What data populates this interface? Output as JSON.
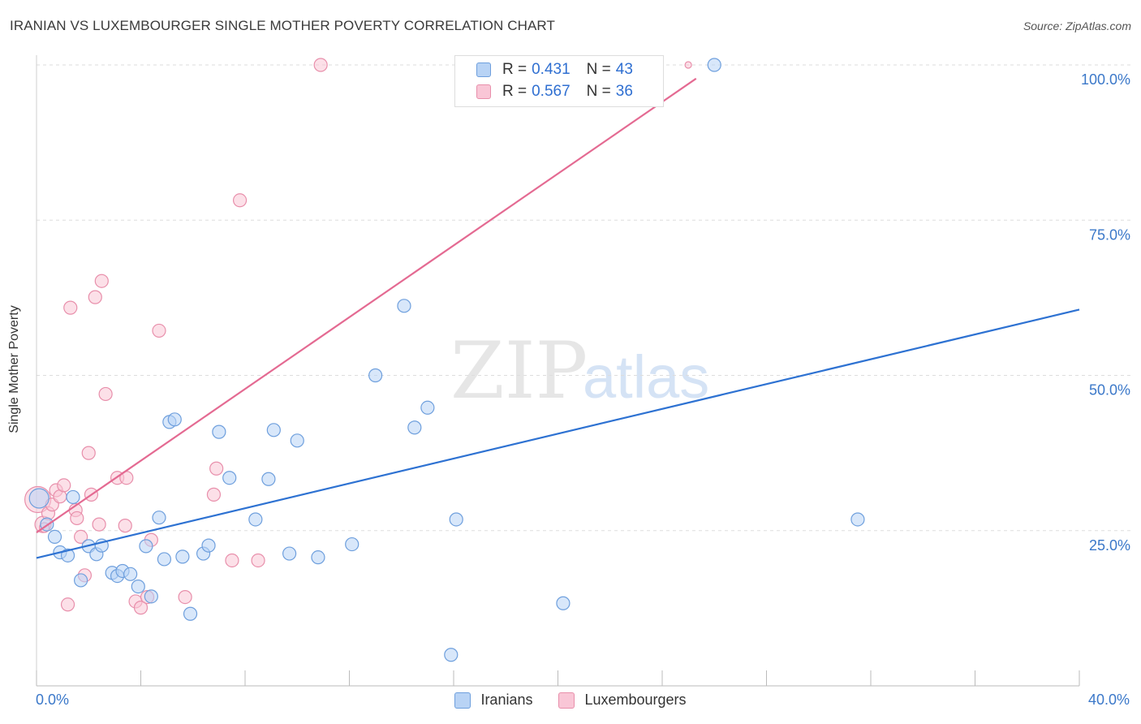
{
  "header": {
    "title": "IRANIAN VS LUXEMBOURGER SINGLE MOTHER POVERTY CORRELATION CHART",
    "source": "Source: ZipAtlas.com"
  },
  "watermark": {
    "zip": "ZIP",
    "atlas": "atlas"
  },
  "legend_top": {
    "rows": [
      {
        "r_label": "R =",
        "r_value": "0.431",
        "n_label": "N =",
        "n_value": "43"
      },
      {
        "r_label": "R =",
        "r_value": "0.567",
        "n_label": "N =",
        "n_value": "36"
      }
    ]
  },
  "colors": {
    "iranians_fill": "#b8d3f5",
    "iranians_stroke": "#6e9fdd",
    "iranians_line": "#2e72d2",
    "lux_fill": "#f9c6d6",
    "lux_stroke": "#e88fab",
    "lux_line": "#e46a92",
    "axis_label": "#3b78c9",
    "grid": "#dddddd"
  },
  "chart_data": {
    "type": "scatter",
    "title": "IRANIAN VS LUXEMBOURGER SINGLE MOTHER POVERTY CORRELATION CHART",
    "xlabel": "",
    "ylabel": "Single Mother Poverty",
    "xlim": [
      0,
      40
    ],
    "ylim": [
      0,
      100
    ],
    "x_tick_labels": [
      "0.0%",
      "40.0%"
    ],
    "y_tick_labels": [
      "25.0%",
      "50.0%",
      "75.0%",
      "100.0%"
    ],
    "y_ticks": [
      25,
      50,
      75,
      100
    ],
    "grid": true,
    "legend_position": "bottom",
    "series": [
      {
        "name": "Iranians",
        "r": 0.431,
        "n": 43,
        "trend": {
          "x": [
            0,
            40
          ],
          "y": [
            20.6,
            60.6
          ]
        },
        "points": [
          [
            0.1,
            30.2,
            12
          ],
          [
            0.4,
            26.0,
            8
          ],
          [
            0.7,
            24.0,
            8
          ],
          [
            0.9,
            21.5,
            8
          ],
          [
            1.2,
            21.0,
            8
          ],
          [
            1.4,
            30.4,
            8
          ],
          [
            1.7,
            17.0,
            8
          ],
          [
            2.0,
            22.5,
            8
          ],
          [
            2.3,
            21.2,
            8
          ],
          [
            2.5,
            22.6,
            8
          ],
          [
            2.9,
            18.2,
            8
          ],
          [
            3.1,
            17.7,
            8
          ],
          [
            3.3,
            18.5,
            8
          ],
          [
            3.6,
            18.0,
            8
          ],
          [
            3.9,
            16.0,
            8
          ],
          [
            4.2,
            22.5,
            8
          ],
          [
            4.4,
            14.4,
            8
          ],
          [
            4.7,
            27.1,
            8
          ],
          [
            4.9,
            20.4,
            8
          ],
          [
            5.1,
            42.5,
            8
          ],
          [
            5.3,
            42.9,
            8
          ],
          [
            5.6,
            20.8,
            8
          ],
          [
            5.9,
            11.6,
            8
          ],
          [
            6.4,
            21.3,
            8
          ],
          [
            6.6,
            22.6,
            8
          ],
          [
            7.0,
            40.9,
            8
          ],
          [
            7.4,
            33.5,
            8
          ],
          [
            8.4,
            26.8,
            8
          ],
          [
            8.9,
            33.3,
            8
          ],
          [
            9.1,
            41.2,
            8
          ],
          [
            9.7,
            21.3,
            8
          ],
          [
            10.0,
            39.5,
            8
          ],
          [
            10.8,
            20.7,
            8
          ],
          [
            12.1,
            22.8,
            8
          ],
          [
            13.0,
            50.0,
            8
          ],
          [
            14.1,
            61.2,
            8
          ],
          [
            14.5,
            41.6,
            8
          ],
          [
            15.0,
            44.8,
            8
          ],
          [
            15.9,
            5.0,
            8
          ],
          [
            16.1,
            26.8,
            8
          ],
          [
            20.2,
            13.3,
            8
          ],
          [
            26.0,
            100.0,
            8
          ],
          [
            31.5,
            26.8,
            8
          ]
        ]
      },
      {
        "name": "Luxembourgers",
        "r": 0.567,
        "n": 36,
        "trend": {
          "x": [
            0,
            25.3
          ],
          "y": [
            24.7,
            97.8
          ]
        },
        "points": [
          [
            0.05,
            30.0,
            16
          ],
          [
            0.25,
            26.0,
            10
          ],
          [
            0.45,
            27.8,
            8
          ],
          [
            0.6,
            29.2,
            8
          ],
          [
            0.75,
            31.5,
            8
          ],
          [
            0.9,
            30.5,
            8
          ],
          [
            1.05,
            32.3,
            8
          ],
          [
            1.2,
            13.1,
            8
          ],
          [
            1.3,
            60.9,
            8
          ],
          [
            1.5,
            28.3,
            8
          ],
          [
            1.55,
            27.0,
            8
          ],
          [
            1.7,
            24.0,
            8
          ],
          [
            1.85,
            17.8,
            8
          ],
          [
            2.0,
            37.5,
            8
          ],
          [
            2.1,
            30.8,
            8
          ],
          [
            2.25,
            62.6,
            8
          ],
          [
            2.4,
            26.0,
            8
          ],
          [
            2.5,
            65.2,
            8
          ],
          [
            2.65,
            47.0,
            8
          ],
          [
            3.1,
            33.5,
            8
          ],
          [
            3.4,
            25.8,
            8
          ],
          [
            3.45,
            33.5,
            8
          ],
          [
            3.8,
            13.6,
            8
          ],
          [
            4.0,
            12.6,
            8
          ],
          [
            4.25,
            14.3,
            8
          ],
          [
            4.4,
            23.5,
            8
          ],
          [
            4.7,
            57.2,
            8
          ],
          [
            5.7,
            14.3,
            8
          ],
          [
            6.8,
            30.8,
            8
          ],
          [
            6.9,
            35.0,
            8
          ],
          [
            7.5,
            20.2,
            8
          ],
          [
            7.8,
            78.2,
            8
          ],
          [
            8.5,
            20.2,
            8
          ],
          [
            10.9,
            100.0,
            8
          ],
          [
            25.0,
            100.0,
            4
          ],
          [
            0.3,
            25.5,
            6
          ]
        ]
      }
    ]
  },
  "bottom_legend": {
    "items": [
      "Iranians",
      "Luxembourgers"
    ]
  }
}
